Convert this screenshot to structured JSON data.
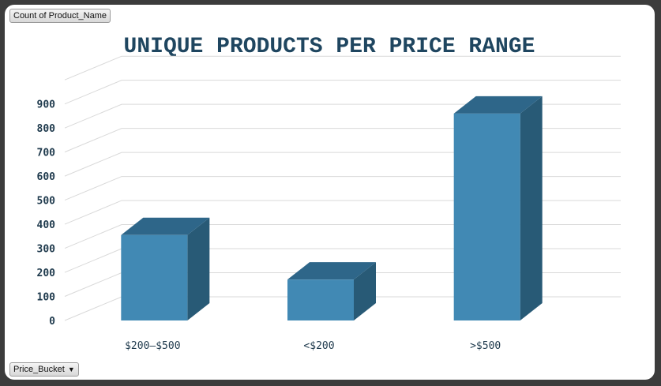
{
  "pivot": {
    "value_field": "Count of Product_Name",
    "axis_field": "Price_Bucket",
    "axis_field_dropdown_icon": "triangle-down-icon"
  },
  "chart_data": {
    "type": "bar",
    "title": "UNIQUE PRODUCTS PER PRICE RANGE",
    "categories": [
      "$200–$500",
      "<$200",
      ">$500"
    ],
    "values": [
      355,
      170,
      860
    ],
    "ylim": [
      0,
      1000
    ],
    "yticks": [
      0,
      100,
      200,
      300,
      400,
      500,
      600,
      700,
      800,
      900
    ],
    "grid": true,
    "legend": "none",
    "style": "3d-column",
    "colors": {
      "bar_front": "#4189b4",
      "bar_side": "#285a76",
      "bar_top": "#2e6689",
      "title": "#1f4660",
      "grid": "#d9d9d9"
    }
  }
}
